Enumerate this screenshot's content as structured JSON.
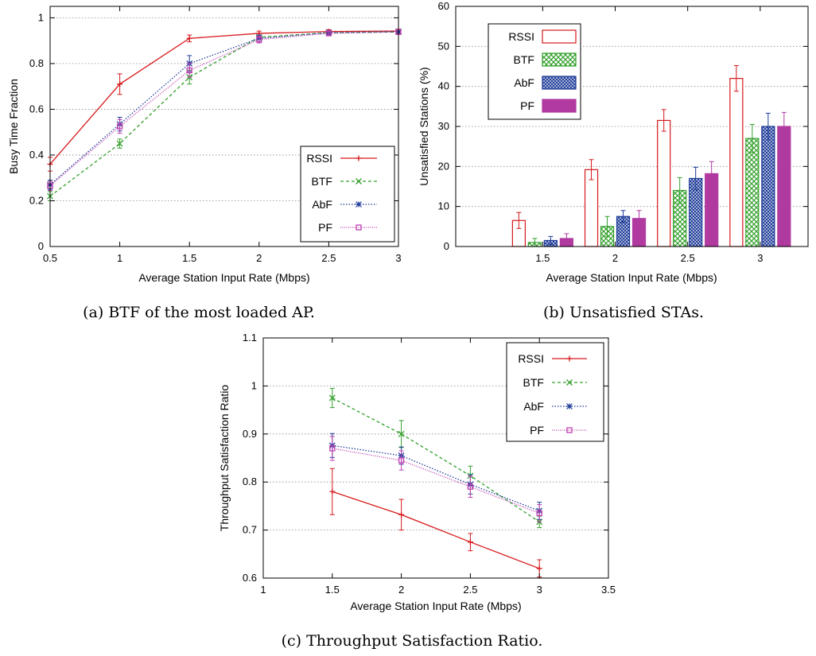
{
  "chart_data": [
    {
      "type": "line",
      "caption": "(a) BTF of the most loaded AP.",
      "xlabel": "Average Station Input Rate (Mbps)",
      "ylabel": "Busy Time Fraction",
      "xlim": [
        0.5,
        3
      ],
      "ylim": [
        0,
        1.05
      ],
      "xticks": [
        "0.5",
        "1",
        "1.5",
        "2",
        "2.5",
        "3"
      ],
      "yticks": [
        "0",
        "0.2",
        "0.4",
        "0.6",
        "0.8",
        "1"
      ],
      "x": [
        0.5,
        1,
        1.5,
        2,
        2.5,
        3
      ],
      "grid": "horizontal",
      "legend": "bottom-right",
      "series": [
        {
          "name": "RSSI",
          "color": "#d7191c",
          "dash": "",
          "marker": "plus",
          "values": [
            0.36,
            0.71,
            0.91,
            0.932,
            0.94,
            0.942
          ],
          "err": [
            0.03,
            0.045,
            0.015,
            0.01,
            0.008,
            0.008
          ]
        },
        {
          "name": "BTF",
          "color": "#33a02c",
          "dash": "4 3",
          "marker": "x",
          "values": [
            0.22,
            0.45,
            0.74,
            0.915,
            0.935,
            0.938
          ],
          "err": [
            0.02,
            0.02,
            0.03,
            0.01,
            0.008,
            0.008
          ]
        },
        {
          "name": "AbF",
          "color": "#1f3c99",
          "dash": "1.5 2",
          "marker": "star",
          "values": [
            0.27,
            0.535,
            0.8,
            0.91,
            0.935,
            0.94
          ],
          "err": [
            0.02,
            0.03,
            0.035,
            0.015,
            0.008,
            0.008
          ]
        },
        {
          "name": "PF",
          "color": "#c040b0",
          "dash": "1 1.5",
          "marker": "square",
          "values": [
            0.265,
            0.525,
            0.77,
            0.905,
            0.932,
            0.938
          ],
          "err": [
            0.02,
            0.03,
            0.03,
            0.015,
            0.008,
            0.008
          ]
        }
      ]
    },
    {
      "type": "bar",
      "caption": "(b) Unsatisfied STAs.",
      "xlabel": "Average Station Input Rate (Mbps)",
      "ylabel": "Unsatisfied Stations (%)",
      "ylim": [
        0,
        60
      ],
      "xticks": [
        "1.5",
        "2",
        "2.5",
        "3"
      ],
      "yticks": [
        "0",
        "10",
        "20",
        "30",
        "40",
        "50",
        "60"
      ],
      "categories": [
        "1.5",
        "2",
        "2.5",
        "3"
      ],
      "grid": "horizontal",
      "legend": "top-left",
      "series": [
        {
          "name": "RSSI",
          "color": "#d7191c",
          "pattern": "outline",
          "values": [
            6.5,
            19.2,
            31.5,
            42
          ],
          "err": [
            2,
            2.5,
            2.7,
            3.2
          ]
        },
        {
          "name": "BTF",
          "color": "#33a02c",
          "pattern": "hatch",
          "values": [
            1,
            5,
            14,
            27
          ],
          "err": [
            1,
            2.5,
            3.2,
            3.5
          ]
        },
        {
          "name": "AbF",
          "color": "#1f3c99",
          "pattern": "crosshatch",
          "values": [
            1.5,
            7.5,
            17,
            30
          ],
          "err": [
            1,
            1.5,
            2.8,
            3.3
          ]
        },
        {
          "name": "PF",
          "color": "#b03aa0",
          "pattern": "solid",
          "values": [
            2,
            7,
            18.2,
            30
          ],
          "err": [
            1.2,
            2,
            3,
            3.5
          ]
        }
      ]
    },
    {
      "type": "line",
      "caption": "(c) Throughput Satisfaction Ratio.",
      "xlabel": "Average Station Input Rate (Mbps)",
      "ylabel": "Throughput Satisfaction Ratio",
      "xlim": [
        1,
        3.5
      ],
      "ylim": [
        0.6,
        1.1
      ],
      "xticks": [
        "1",
        "1.5",
        "2",
        "2.5",
        "3",
        "3.5"
      ],
      "yticks": [
        "0.6",
        "0.7",
        "0.8",
        "0.9",
        "1",
        "1.1"
      ],
      "x": [
        1.5,
        2,
        2.5,
        3
      ],
      "grid": "horizontal",
      "legend": "top-right",
      "series": [
        {
          "name": "RSSI",
          "color": "#d7191c",
          "dash": "",
          "marker": "plus",
          "values": [
            0.78,
            0.732,
            0.675,
            0.62
          ],
          "err": [
            0.048,
            0.032,
            0.018,
            0.018
          ]
        },
        {
          "name": "BTF",
          "color": "#33a02c",
          "dash": "4 3",
          "marker": "x",
          "values": [
            0.975,
            0.9,
            0.813,
            0.717
          ],
          "err": [
            0.02,
            0.028,
            0.02,
            0.012
          ]
        },
        {
          "name": "AbF",
          "color": "#1f3c99",
          "dash": "1.5 2",
          "marker": "star",
          "values": [
            0.876,
            0.855,
            0.795,
            0.74
          ],
          "err": [
            0.025,
            0.018,
            0.02,
            0.018
          ]
        },
        {
          "name": "PF",
          "color": "#c040b0",
          "dash": "1 1.5",
          "marker": "square",
          "values": [
            0.87,
            0.845,
            0.79,
            0.735
          ],
          "err": [
            0.025,
            0.02,
            0.022,
            0.018
          ]
        }
      ]
    }
  ]
}
